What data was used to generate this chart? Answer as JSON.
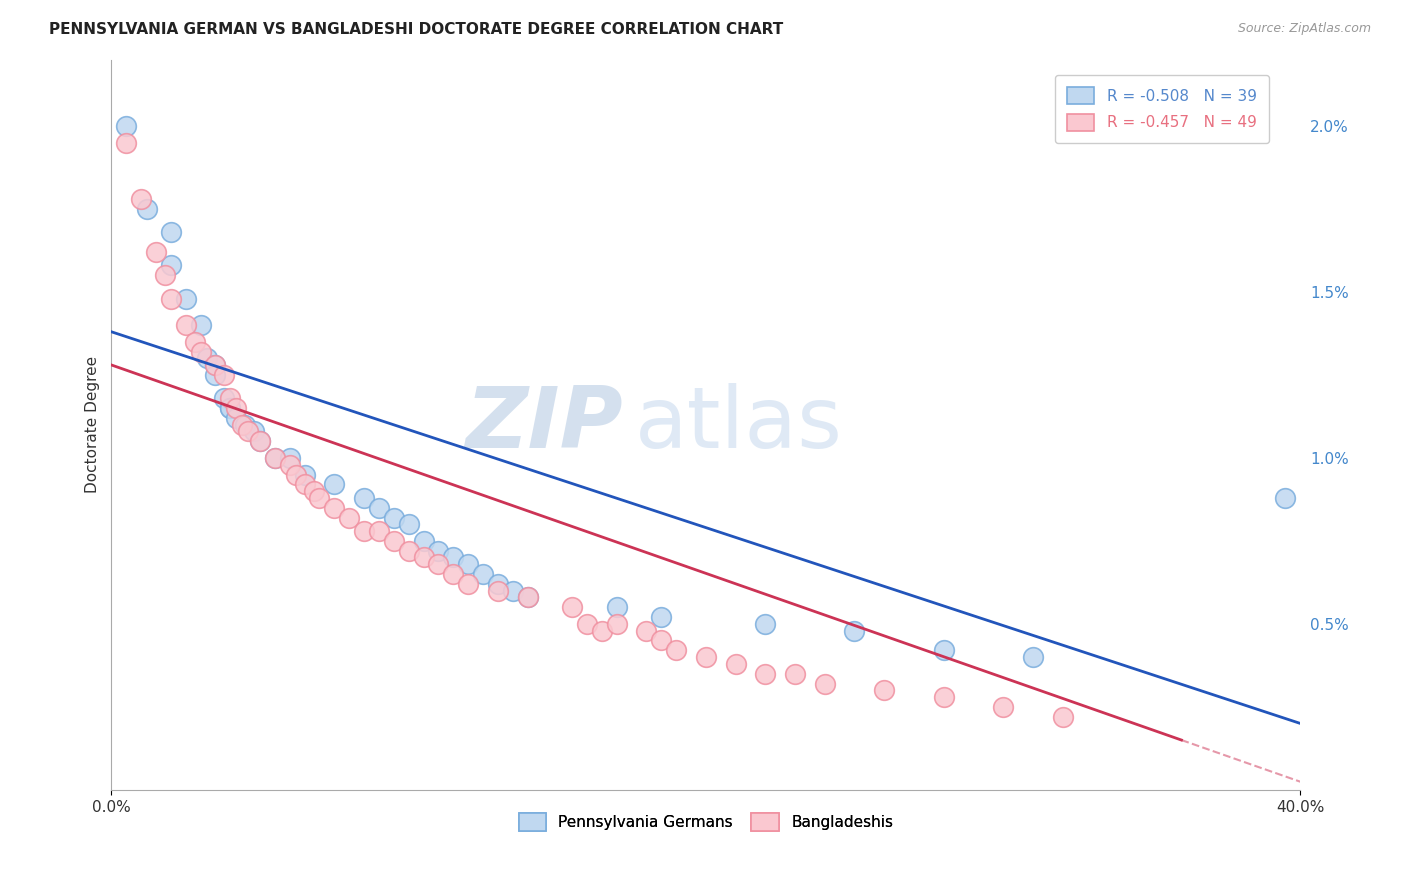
{
  "title": "PENNSYLVANIA GERMAN VS BANGLADESHI DOCTORATE DEGREE CORRELATION CHART",
  "source": "Source: ZipAtlas.com",
  "ylabel": "Doctorate Degree",
  "ylabel_right_ticks": [
    "0.5%",
    "1.0%",
    "1.5%",
    "2.0%"
  ],
  "ylabel_right_vals": [
    0.005,
    0.01,
    0.015,
    0.02
  ],
  "xlim": [
    0.0,
    0.4
  ],
  "ylim": [
    0.0,
    0.022
  ],
  "legend_entries": [
    {
      "label": "R = -0.508   N = 39",
      "color": "#5588cc"
    },
    {
      "label": "R = -0.457   N = 49",
      "color": "#e87080"
    }
  ],
  "legend_labels": [
    "Pennsylvania Germans",
    "Bangladeshis"
  ],
  "watermark1": "ZIP",
  "watermark2": "atlas",
  "background_color": "#ffffff",
  "grid_color": "#cccccc",
  "blue_points": [
    [
      0.005,
      0.02
    ],
    [
      0.012,
      0.0175
    ],
    [
      0.02,
      0.0168
    ],
    [
      0.02,
      0.0158
    ],
    [
      0.025,
      0.0148
    ],
    [
      0.03,
      0.014
    ],
    [
      0.032,
      0.013
    ],
    [
      0.035,
      0.0128
    ],
    [
      0.035,
      0.0125
    ],
    [
      0.038,
      0.0118
    ],
    [
      0.04,
      0.0115
    ],
    [
      0.04,
      0.0115
    ],
    [
      0.042,
      0.0112
    ],
    [
      0.045,
      0.011
    ],
    [
      0.048,
      0.0108
    ],
    [
      0.05,
      0.0105
    ],
    [
      0.055,
      0.01
    ],
    [
      0.06,
      0.01
    ],
    [
      0.065,
      0.0095
    ],
    [
      0.075,
      0.0092
    ],
    [
      0.085,
      0.0088
    ],
    [
      0.09,
      0.0085
    ],
    [
      0.095,
      0.0082
    ],
    [
      0.1,
      0.008
    ],
    [
      0.105,
      0.0075
    ],
    [
      0.11,
      0.0072
    ],
    [
      0.115,
      0.007
    ],
    [
      0.12,
      0.0068
    ],
    [
      0.125,
      0.0065
    ],
    [
      0.13,
      0.0062
    ],
    [
      0.135,
      0.006
    ],
    [
      0.14,
      0.0058
    ],
    [
      0.17,
      0.0055
    ],
    [
      0.185,
      0.0052
    ],
    [
      0.22,
      0.005
    ],
    [
      0.25,
      0.0048
    ],
    [
      0.28,
      0.0042
    ],
    [
      0.31,
      0.004
    ],
    [
      0.395,
      0.0088
    ]
  ],
  "pink_points": [
    [
      0.005,
      0.0195
    ],
    [
      0.01,
      0.0178
    ],
    [
      0.015,
      0.0162
    ],
    [
      0.018,
      0.0155
    ],
    [
      0.02,
      0.0148
    ],
    [
      0.025,
      0.014
    ],
    [
      0.028,
      0.0135
    ],
    [
      0.03,
      0.0132
    ],
    [
      0.035,
      0.0128
    ],
    [
      0.038,
      0.0125
    ],
    [
      0.04,
      0.0118
    ],
    [
      0.042,
      0.0115
    ],
    [
      0.044,
      0.011
    ],
    [
      0.046,
      0.0108
    ],
    [
      0.05,
      0.0105
    ],
    [
      0.055,
      0.01
    ],
    [
      0.06,
      0.0098
    ],
    [
      0.062,
      0.0095
    ],
    [
      0.065,
      0.0092
    ],
    [
      0.068,
      0.009
    ],
    [
      0.07,
      0.0088
    ],
    [
      0.075,
      0.0085
    ],
    [
      0.08,
      0.0082
    ],
    [
      0.085,
      0.0078
    ],
    [
      0.09,
      0.0078
    ],
    [
      0.095,
      0.0075
    ],
    [
      0.1,
      0.0072
    ],
    [
      0.105,
      0.007
    ],
    [
      0.11,
      0.0068
    ],
    [
      0.115,
      0.0065
    ],
    [
      0.12,
      0.0062
    ],
    [
      0.13,
      0.006
    ],
    [
      0.14,
      0.0058
    ],
    [
      0.155,
      0.0055
    ],
    [
      0.16,
      0.005
    ],
    [
      0.165,
      0.0048
    ],
    [
      0.17,
      0.005
    ],
    [
      0.18,
      0.0048
    ],
    [
      0.185,
      0.0045
    ],
    [
      0.19,
      0.0042
    ],
    [
      0.2,
      0.004
    ],
    [
      0.21,
      0.0038
    ],
    [
      0.22,
      0.0035
    ],
    [
      0.23,
      0.0035
    ],
    [
      0.24,
      0.0032
    ],
    [
      0.26,
      0.003
    ],
    [
      0.28,
      0.0028
    ],
    [
      0.3,
      0.0025
    ],
    [
      0.32,
      0.0022
    ]
  ],
  "blue_line_x": [
    0.0,
    0.4
  ],
  "blue_line_y": [
    0.0138,
    0.002
  ],
  "pink_line_x": [
    0.0,
    0.36
  ],
  "pink_line_y": [
    0.0128,
    0.0015
  ],
  "blue_color": "#7aaddd",
  "pink_color": "#f090a0",
  "blue_line_color": "#2255bb",
  "pink_line_color": "#cc3355",
  "blue_fill": "#c0d8f0",
  "pink_fill": "#fac8d0"
}
